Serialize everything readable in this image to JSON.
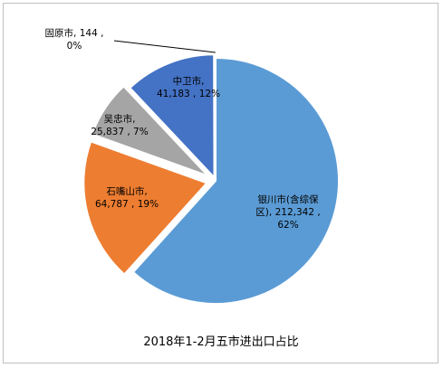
{
  "chart_data": {
    "type": "pie",
    "title": "2018年1-2月五市进出口占比",
    "slices": [
      {
        "label_lines": [
          "银川市(含综保",
          "区), 212,342 ,",
          "62%"
        ],
        "value": 212342,
        "percent": 62,
        "color": "#5b9bd5",
        "text_color": "#000000"
      },
      {
        "label_lines": [
          "石嘴山市,",
          "64,787 , 19%"
        ],
        "value": 64787,
        "percent": 19,
        "color": "#ed7d31",
        "text_color": "#000000"
      },
      {
        "label_lines": [
          "吴忠市,",
          "25,837 , 7%"
        ],
        "value": 25837,
        "percent": 7,
        "color": "#a5a5a5",
        "text_color": "#000000"
      },
      {
        "label_lines": [
          "中卫市,",
          "41,183 , 12%"
        ],
        "value": 41183,
        "percent": 12,
        "color": "#4472c4",
        "text_color": "#000000"
      },
      {
        "label_lines": [
          "固原市, 144 ,",
          "0%"
        ],
        "value": 144,
        "percent": 0,
        "color": "#ffc000",
        "text_color": "#000000"
      }
    ]
  }
}
